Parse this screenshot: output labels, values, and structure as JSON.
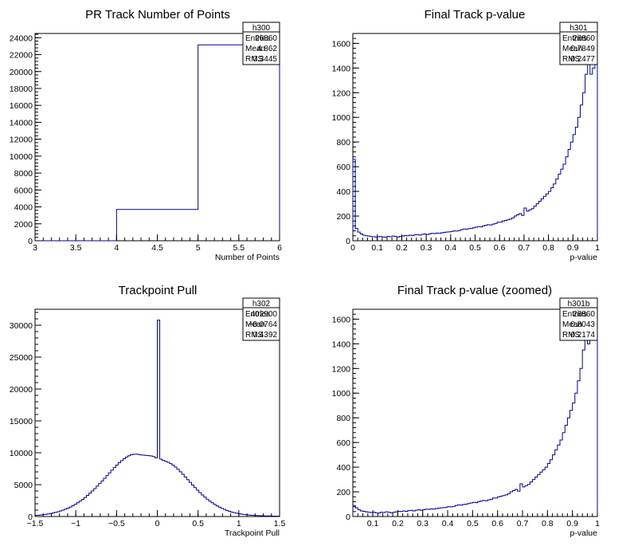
{
  "chart_data": [
    {
      "type": "histogram",
      "title": "PR Track Number of Points",
      "xlabel": "Number of Points",
      "ylabel": "",
      "xlim": [
        3,
        6
      ],
      "ylim": [
        0,
        24500
      ],
      "xticks": [
        3,
        3.5,
        4,
        4.5,
        5,
        5.5,
        6
      ],
      "xtick_labels": [
        "3",
        "3.5",
        "4",
        "4.5",
        "5",
        "5.5",
        "6"
      ],
      "yticks": [
        0,
        2000,
        4000,
        6000,
        8000,
        10000,
        12000,
        14000,
        16000,
        18000,
        20000,
        22000,
        24000
      ],
      "ytick_labels": [
        "0",
        "2000",
        "4000",
        "6000",
        "8000",
        "10000",
        "12000",
        "14000",
        "16000",
        "18000",
        "20000",
        "22000",
        "24000"
      ],
      "bin_edges": [
        3,
        4,
        5,
        6
      ],
      "values": [
        0,
        3700,
        23160
      ],
      "stats": {
        "name": "h300",
        "rows": [
          [
            "Entries",
            "26860"
          ],
          [
            "Mean",
            "4.862"
          ],
          [
            "RMS",
            "0.3445"
          ]
        ]
      }
    },
    {
      "type": "histogram",
      "title": "Final Track p-value",
      "xlabel": "p-value",
      "ylabel": "",
      "xlim": [
        0,
        1
      ],
      "ylim": [
        0,
        1680
      ],
      "xticks": [
        0,
        0.1,
        0.2,
        0.3,
        0.4,
        0.5,
        0.6,
        0.7,
        0.8,
        0.9,
        1
      ],
      "xtick_labels": [
        "0",
        "0.1",
        "0.2",
        "0.3",
        "0.4",
        "0.5",
        "0.6",
        "0.7",
        "0.8",
        "0.9",
        "1"
      ],
      "yticks": [
        0,
        200,
        400,
        600,
        800,
        1000,
        1200,
        1400,
        1600
      ],
      "ytick_labels": [
        "0",
        "200",
        "400",
        "600",
        "800",
        "1000",
        "1200",
        "1400",
        "1600"
      ],
      "bin_edges": [
        0,
        0.01,
        0.02,
        0.03,
        0.04,
        0.05,
        0.06,
        0.07,
        0.08,
        0.09,
        0.1,
        0.11,
        0.12,
        0.13,
        0.14,
        0.15,
        0.16,
        0.17,
        0.18,
        0.19,
        0.2,
        0.21,
        0.22,
        0.23,
        0.24,
        0.25,
        0.26,
        0.27,
        0.28,
        0.29,
        0.3,
        0.31,
        0.32,
        0.33,
        0.34,
        0.35,
        0.36,
        0.37,
        0.38,
        0.39,
        0.4,
        0.41,
        0.42,
        0.43,
        0.44,
        0.45,
        0.46,
        0.47,
        0.48,
        0.49,
        0.5,
        0.51,
        0.52,
        0.53,
        0.54,
        0.55,
        0.56,
        0.57,
        0.58,
        0.59,
        0.6,
        0.61,
        0.62,
        0.63,
        0.64,
        0.65,
        0.66,
        0.67,
        0.68,
        0.69,
        0.7,
        0.71,
        0.72,
        0.73,
        0.74,
        0.75,
        0.76,
        0.77,
        0.78,
        0.79,
        0.8,
        0.81,
        0.82,
        0.83,
        0.84,
        0.85,
        0.86,
        0.87,
        0.88,
        0.89,
        0.9,
        0.91,
        0.92,
        0.93,
        0.94,
        0.95,
        0.96,
        0.97,
        0.98,
        0.99,
        1
      ],
      "values": [
        660,
        100,
        70,
        55,
        45,
        40,
        38,
        35,
        32,
        30,
        32,
        35,
        30,
        28,
        35,
        32,
        38,
        35,
        30,
        35,
        38,
        42,
        40,
        45,
        42,
        48,
        50,
        45,
        52,
        55,
        50,
        55,
        60,
        58,
        62,
        60,
        65,
        68,
        70,
        72,
        75,
        80,
        78,
        82,
        90,
        95,
        92,
        98,
        100,
        105,
        110,
        115,
        112,
        120,
        125,
        130,
        128,
        135,
        140,
        150,
        150,
        160,
        165,
        170,
        175,
        185,
        200,
        210,
        220,
        205,
        265,
        240,
        250,
        260,
        280,
        300,
        320,
        340,
        360,
        380,
        400,
        430,
        460,
        500,
        540,
        580,
        620,
        680,
        740,
        800,
        860,
        920,
        1000,
        1100,
        1200,
        1350,
        1650,
        1350,
        1400,
        1500
      ],
      "stats": {
        "name": "h301",
        "rows": [
          [
            "Entries",
            "26860"
          ],
          [
            "Mean",
            "0.7849"
          ],
          [
            "RMS",
            "0.2477"
          ]
        ]
      }
    },
    {
      "type": "histogram",
      "title": "Trackpoint Pull",
      "xlabel": "Trackpoint Pull",
      "ylabel": "",
      "xlim": [
        -1.5,
        1.5
      ],
      "ylim": [
        0,
        32500
      ],
      "xticks": [
        -1.5,
        -1,
        -0.5,
        0,
        0.5,
        1,
        1.5
      ],
      "xtick_labels": [
        "−1.5",
        "−1",
        "−0.5",
        "0",
        "0.5",
        "1",
        "1.5"
      ],
      "yticks": [
        0,
        5000,
        10000,
        15000,
        20000,
        25000,
        30000
      ],
      "ytick_labels": [
        "0",
        "5000",
        "10000",
        "15000",
        "20000",
        "25000",
        "30000"
      ],
      "bin_edges": [
        -1.5,
        -1.47,
        -1.44,
        -1.41,
        -1.38,
        -1.35,
        -1.32,
        -1.29,
        -1.26,
        -1.23,
        -1.2,
        -1.17,
        -1.14,
        -1.11,
        -1.08,
        -1.05,
        -1.02,
        -0.99,
        -0.96,
        -0.93,
        -0.9,
        -0.87,
        -0.84,
        -0.81,
        -0.78,
        -0.75,
        -0.72,
        -0.69,
        -0.66,
        -0.63,
        -0.6,
        -0.57,
        -0.54,
        -0.51,
        -0.48,
        -0.45,
        -0.42,
        -0.39,
        -0.36,
        -0.33,
        -0.3,
        -0.27,
        -0.24,
        -0.21,
        -0.18,
        -0.15,
        -0.12,
        -0.09,
        -0.06,
        -0.03,
        0,
        0.03,
        0.06,
        0.09,
        0.12,
        0.15,
        0.18,
        0.21,
        0.24,
        0.27,
        0.3,
        0.33,
        0.36,
        0.39,
        0.42,
        0.45,
        0.48,
        0.51,
        0.54,
        0.57,
        0.6,
        0.63,
        0.66,
        0.69,
        0.72,
        0.75,
        0.78,
        0.81,
        0.84,
        0.87,
        0.9,
        0.93,
        0.96,
        0.99,
        1.02,
        1.05,
        1.08,
        1.11,
        1.14,
        1.17,
        1.2,
        1.23,
        1.26,
        1.29,
        1.32,
        1.35,
        1.38,
        1.41,
        1.44,
        1.47,
        1.5
      ],
      "values": [
        180,
        210,
        250,
        300,
        350,
        410,
        480,
        560,
        650,
        750,
        870,
        1000,
        1150,
        1310,
        1490,
        1690,
        1910,
        2150,
        2410,
        2690,
        2990,
        3310,
        3650,
        4010,
        4380,
        4770,
        5170,
        5580,
        6000,
        6420,
        6840,
        7260,
        7670,
        8060,
        8430,
        8770,
        9070,
        9330,
        9530,
        9680,
        9760,
        9780,
        9740,
        9650,
        9620,
        9580,
        9550,
        9500,
        9400,
        9200,
        30800,
        9000,
        8800,
        8650,
        8500,
        8300,
        8050,
        7750,
        7400,
        7020,
        6620,
        6200,
        5780,
        5360,
        4940,
        4530,
        4130,
        3750,
        3380,
        3040,
        2720,
        2420,
        2150,
        1900,
        1670,
        1470,
        1280,
        1110,
        960,
        830,
        710,
        610,
        520,
        450,
        380,
        330,
        280,
        240,
        210,
        180,
        160,
        140,
        120,
        110,
        100,
        90,
        80,
        70,
        60,
        55
      ],
      "stats": {
        "name": "h302",
        "rows": [
          [
            "Entries",
            "402900"
          ],
          [
            "Mean",
            "−0.0764"
          ],
          [
            "RMS",
            "0.4392"
          ]
        ]
      }
    },
    {
      "type": "histogram",
      "title": "Final Track p-value (zoomed)",
      "xlabel": "p-value",
      "ylabel": "",
      "xlim": [
        0.02,
        1
      ],
      "ylim": [
        0,
        1680
      ],
      "xticks": [
        0.1,
        0.2,
        0.3,
        0.4,
        0.5,
        0.6,
        0.7,
        0.8,
        0.9,
        1
      ],
      "xtick_labels": [
        "0.1",
        "0.2",
        "0.3",
        "0.4",
        "0.5",
        "0.6",
        "0.7",
        "0.8",
        "0.9",
        "1"
      ],
      "yticks": [
        0,
        200,
        400,
        600,
        800,
        1000,
        1200,
        1400,
        1600
      ],
      "ytick_labels": [
        "0",
        "200",
        "400",
        "600",
        "800",
        "1000",
        "1200",
        "1400",
        "1600"
      ],
      "bin_edges": [
        0.02,
        0.03,
        0.04,
        0.05,
        0.06,
        0.07,
        0.08,
        0.09,
        0.1,
        0.11,
        0.12,
        0.13,
        0.14,
        0.15,
        0.16,
        0.17,
        0.18,
        0.19,
        0.2,
        0.21,
        0.22,
        0.23,
        0.24,
        0.25,
        0.26,
        0.27,
        0.28,
        0.29,
        0.3,
        0.31,
        0.32,
        0.33,
        0.34,
        0.35,
        0.36,
        0.37,
        0.38,
        0.39,
        0.4,
        0.41,
        0.42,
        0.43,
        0.44,
        0.45,
        0.46,
        0.47,
        0.48,
        0.49,
        0.5,
        0.51,
        0.52,
        0.53,
        0.54,
        0.55,
        0.56,
        0.57,
        0.58,
        0.59,
        0.6,
        0.61,
        0.62,
        0.63,
        0.64,
        0.65,
        0.66,
        0.67,
        0.68,
        0.69,
        0.7,
        0.71,
        0.72,
        0.73,
        0.74,
        0.75,
        0.76,
        0.77,
        0.78,
        0.79,
        0.8,
        0.81,
        0.82,
        0.83,
        0.84,
        0.85,
        0.86,
        0.87,
        0.88,
        0.89,
        0.9,
        0.91,
        0.92,
        0.93,
        0.94,
        0.95,
        0.96,
        0.97,
        0.98,
        0.99,
        1
      ],
      "values": [
        90,
        70,
        55,
        45,
        42,
        38,
        35,
        32,
        35,
        30,
        28,
        35,
        32,
        38,
        35,
        30,
        35,
        38,
        42,
        40,
        45,
        42,
        48,
        50,
        45,
        52,
        55,
        50,
        55,
        60,
        58,
        62,
        60,
        65,
        68,
        70,
        72,
        75,
        80,
        78,
        82,
        90,
        95,
        92,
        98,
        100,
        105,
        110,
        115,
        112,
        120,
        125,
        130,
        128,
        135,
        140,
        150,
        150,
        160,
        165,
        170,
        175,
        185,
        200,
        210,
        220,
        205,
        265,
        240,
        250,
        260,
        280,
        300,
        320,
        340,
        360,
        380,
        400,
        430,
        460,
        500,
        540,
        580,
        620,
        680,
        740,
        800,
        860,
        920,
        1000,
        1100,
        1200,
        1350,
        1650,
        1400,
        1450,
        1500,
        1550
      ],
      "stats": {
        "name": "h301b",
        "rows": [
          [
            "Entries",
            "26860"
          ],
          [
            "Mean",
            "0.8043"
          ],
          [
            "RMS",
            "0.2174"
          ]
        ]
      }
    }
  ],
  "colors": {
    "line": "#00009c",
    "axis": "#000000",
    "background": "#ffffff"
  }
}
